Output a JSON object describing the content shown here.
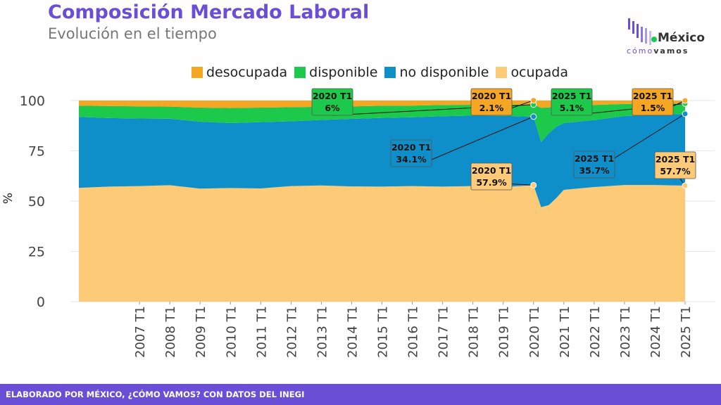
{
  "header": {
    "title": "Composición Mercado Laboral",
    "subtitle": "Evolución en el tiempo"
  },
  "logo": {
    "word": "México",
    "sub_left": "cómo",
    "sub_right": "vamos"
  },
  "footer": {
    "text": "ELABORADO POR MÉXICO, ¿CÓMO VAMOS? CON DATOS DEL INEGI"
  },
  "colors": {
    "desocupada": "#f5a623",
    "disponible": "#1dc94a",
    "no_disponible": "#0e8fc9",
    "ocupada": "#fdcb78",
    "accent": "#6a4fd6"
  },
  "chart_data": {
    "type": "area",
    "stacked": true,
    "ylabel": "%",
    "ylim": [
      0,
      100
    ],
    "yticks": [
      0,
      25,
      50,
      75,
      100
    ],
    "xticks": [
      "2007 T1",
      "2008 T1",
      "2009 T1",
      "2010 T1",
      "2011 T1",
      "2012 T1",
      "2013 T1",
      "2014 T1",
      "2015 T1",
      "2016 T1",
      "2017 T1",
      "2018 T1",
      "2019 T1",
      "2020 T1",
      "2021 T1",
      "2022 T1",
      "2023 T1",
      "2024 T1",
      "2025 T1"
    ],
    "x_start": "2005 T1",
    "legend_position": "top",
    "series": [
      {
        "name": "desocupada",
        "key": "desocupada",
        "values": [
          [
            2005.0,
            2.6
          ],
          [
            2006.0,
            2.7
          ],
          [
            2007.0,
            2.9
          ],
          [
            2008.0,
            3.0
          ],
          [
            2009.0,
            3.5
          ],
          [
            2010.0,
            3.7
          ],
          [
            2011.0,
            3.5
          ],
          [
            2012.0,
            3.3
          ],
          [
            2013.0,
            3.1
          ],
          [
            2014.0,
            2.9
          ],
          [
            2015.0,
            2.6
          ],
          [
            2016.0,
            2.5
          ],
          [
            2017.0,
            2.2
          ],
          [
            2018.0,
            2.1
          ],
          [
            2019.0,
            2.1
          ],
          [
            2020.0,
            2.1
          ],
          [
            2020.25,
            3.6
          ],
          [
            2020.5,
            3.4
          ],
          [
            2020.75,
            3.0
          ],
          [
            2021.0,
            2.7
          ],
          [
            2022.0,
            2.2
          ],
          [
            2023.0,
            1.7
          ],
          [
            2024.0,
            1.7
          ],
          [
            2025.0,
            1.5
          ]
        ]
      },
      {
        "name": "disponible",
        "key": "disponible",
        "values": [
          [
            2005.0,
            5.5
          ],
          [
            2006.0,
            6.0
          ],
          [
            2007.0,
            6.0
          ],
          [
            2008.0,
            6.0
          ],
          [
            2009.0,
            7.0
          ],
          [
            2010.0,
            7.5
          ],
          [
            2011.0,
            7.2
          ],
          [
            2012.0,
            7.0
          ],
          [
            2013.0,
            6.5
          ],
          [
            2014.0,
            6.2
          ],
          [
            2015.0,
            6.0
          ],
          [
            2016.0,
            5.8
          ],
          [
            2017.0,
            5.6
          ],
          [
            2018.0,
            5.4
          ],
          [
            2019.0,
            5.5
          ],
          [
            2020.0,
            6.0
          ],
          [
            2020.25,
            17.0
          ],
          [
            2020.5,
            13.0
          ],
          [
            2020.75,
            10.0
          ],
          [
            2021.0,
            8.5
          ],
          [
            2022.0,
            7.5
          ],
          [
            2023.0,
            6.0
          ],
          [
            2024.0,
            5.5
          ],
          [
            2025.0,
            5.1
          ]
        ]
      },
      {
        "name": "no disponible",
        "key": "no_disponible",
        "values": [
          [
            2005.0,
            35.3
          ],
          [
            2006.0,
            34.1
          ],
          [
            2007.0,
            33.6
          ],
          [
            2008.0,
            33.1
          ],
          [
            2009.0,
            33.3
          ],
          [
            2010.0,
            32.3
          ],
          [
            2011.0,
            33.0
          ],
          [
            2012.0,
            32.2
          ],
          [
            2013.0,
            32.6
          ],
          [
            2014.0,
            33.6
          ],
          [
            2015.0,
            34.2
          ],
          [
            2016.0,
            34.2
          ],
          [
            2017.0,
            35.0
          ],
          [
            2018.0,
            35.0
          ],
          [
            2019.0,
            35.4
          ],
          [
            2020.0,
            34.1
          ],
          [
            2020.25,
            32.4
          ],
          [
            2020.5,
            35.6
          ],
          [
            2020.75,
            35.5
          ],
          [
            2021.0,
            33.2
          ],
          [
            2022.0,
            33.3
          ],
          [
            2023.0,
            34.3
          ],
          [
            2024.0,
            34.8
          ],
          [
            2025.0,
            35.7
          ]
        ]
      },
      {
        "name": "ocupada",
        "key": "ocupada",
        "values": [
          [
            2005.0,
            56.6
          ],
          [
            2006.0,
            57.2
          ],
          [
            2007.0,
            57.5
          ],
          [
            2008.0,
            57.9
          ],
          [
            2009.0,
            56.2
          ],
          [
            2010.0,
            56.5
          ],
          [
            2011.0,
            56.3
          ],
          [
            2012.0,
            57.5
          ],
          [
            2013.0,
            57.8
          ],
          [
            2014.0,
            57.3
          ],
          [
            2015.0,
            57.2
          ],
          [
            2016.0,
            57.5
          ],
          [
            2017.0,
            57.2
          ],
          [
            2018.0,
            57.5
          ],
          [
            2019.0,
            57.0
          ],
          [
            2020.0,
            57.9
          ],
          [
            2020.25,
            47.0
          ],
          [
            2020.5,
            48.0
          ],
          [
            2020.75,
            51.5
          ],
          [
            2021.0,
            55.6
          ],
          [
            2022.0,
            57.0
          ],
          [
            2023.0,
            58.0
          ],
          [
            2024.0,
            58.0
          ],
          [
            2025.0,
            57.7
          ]
        ]
      }
    ],
    "annotations": [
      {
        "period": "2020 T1",
        "value_label": "6%",
        "series": "disponible",
        "style": "green"
      },
      {
        "period": "2020 T1",
        "value_label": "2.1%",
        "series": "desocupada",
        "style": "orange"
      },
      {
        "period": "2025 T1",
        "value_label": "5.1%",
        "series": "disponible",
        "style": "green"
      },
      {
        "period": "2025 T1",
        "value_label": "1.5%",
        "series": "desocupada",
        "style": "orange"
      },
      {
        "period": "2020 T1",
        "value_label": "34.1%",
        "series": "no disponible",
        "style": "blue"
      },
      {
        "period": "2025 T1",
        "value_label": "35.7%",
        "series": "no disponible",
        "style": "blue"
      },
      {
        "period": "2020 T1",
        "value_label": "57.9%",
        "series": "ocupada",
        "style": "tan"
      },
      {
        "period": "2025 T1",
        "value_label": "57.7%",
        "series": "ocupada",
        "style": "tan"
      }
    ]
  }
}
